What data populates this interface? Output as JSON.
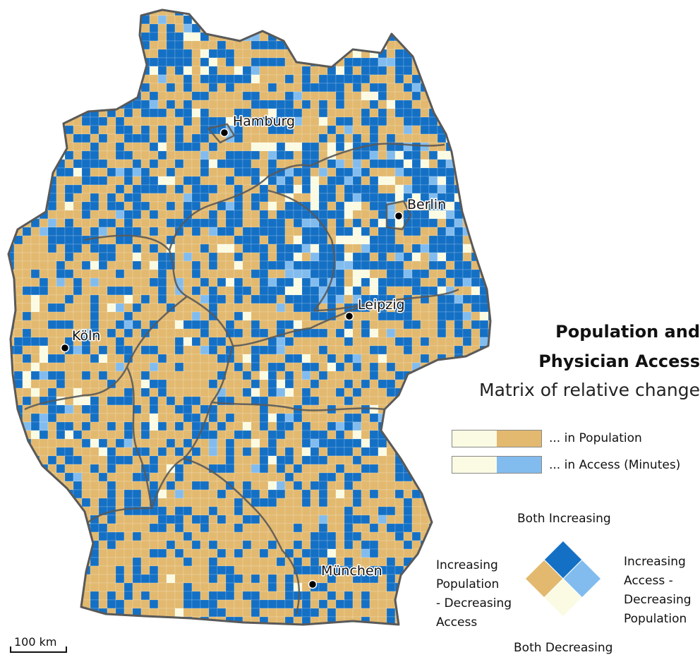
{
  "title_line1": "Population and",
  "title_line2": "Physician Access",
  "subtitle": "Matrix of relative change",
  "colors": {
    "both_increasing": "#1470c4",
    "pop_increasing_access_decreasing": "#e2b96f",
    "access_increasing_pop_decreasing": "#82bcee",
    "both_decreasing": "#fbfbe3",
    "border": "#595959",
    "grid_line": "#ffffff"
  },
  "legend": {
    "population": {
      "label": "... in Population",
      "from_color": "#fbfbe3",
      "to_color": "#e2b96f"
    },
    "access": {
      "label": "... in Access (Minutes)",
      "from_color": "#fbfbe3",
      "to_color": "#82bcee"
    }
  },
  "matrix": {
    "top": "Both Increasing",
    "left": [
      "Increasing",
      "Population",
      "- Decreasing",
      "Access"
    ],
    "right": [
      "Increasing",
      "Access -",
      "Decreasing",
      "Population"
    ],
    "bottom": "Both Decreasing"
  },
  "cities": [
    {
      "name": "Hamburg"
    },
    {
      "name": "Berlin"
    },
    {
      "name": "Leipzig"
    },
    {
      "name": "Köln"
    },
    {
      "name": "München"
    }
  ],
  "scale_bar": {
    "label": "100 km"
  }
}
